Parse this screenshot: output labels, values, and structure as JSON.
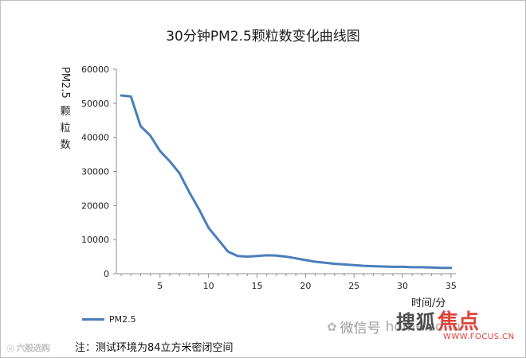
{
  "title": "30分钟PM2.5颗粒数变化曲线图",
  "ylabel_top": "PM2.5",
  "ylabel_chars": [
    "颗",
    "粒",
    "数"
  ],
  "xlabel": "时间/分",
  "legend_label": "PM2.5",
  "note": "注：测试环境为84立方米密闭空间",
  "watermarks": {
    "left_logo_text": "六般选购",
    "wechat_text": "微信号",
    "wechat_url": "home.sohu",
    "sohu_cn": "搜狐",
    "sohu_mark": "焦点",
    "focus_url": "WWW.FOCUS.CN"
  },
  "colors": {
    "series": "#4a7ebb",
    "axis": "#8c8c8c",
    "frame": "#bfbfbf"
  },
  "chart_data": {
    "type": "line",
    "title": "30分钟PM2.5颗粒数变化曲线图",
    "xlabel": "时间/分",
    "ylabel": "PM2.5颗粒数",
    "xlim": [
      0.5,
      35.5
    ],
    "ylim": [
      0,
      60000
    ],
    "x_ticks": [
      5,
      10,
      15,
      20,
      25,
      30,
      35
    ],
    "y_ticks": [
      0,
      10000,
      20000,
      30000,
      40000,
      50000,
      60000
    ],
    "grid": false,
    "legend_position": "bottom-left",
    "series": [
      {
        "name": "PM2.5",
        "x": [
          1,
          2,
          3,
          4,
          5,
          6,
          7,
          8,
          9,
          10,
          11,
          12,
          13,
          14,
          15,
          16,
          17,
          18,
          19,
          20,
          21,
          22,
          23,
          24,
          25,
          26,
          27,
          28,
          29,
          30,
          31,
          32,
          33,
          34,
          35
        ],
        "y": [
          52300,
          52000,
          43300,
          40500,
          36000,
          33000,
          29500,
          24000,
          19000,
          13500,
          10000,
          6500,
          5200,
          5000,
          5200,
          5400,
          5300,
          5000,
          4500,
          4000,
          3500,
          3200,
          2900,
          2700,
          2500,
          2300,
          2200,
          2100,
          2000,
          2000,
          1900,
          1900,
          1800,
          1700,
          1700
        ]
      }
    ]
  }
}
